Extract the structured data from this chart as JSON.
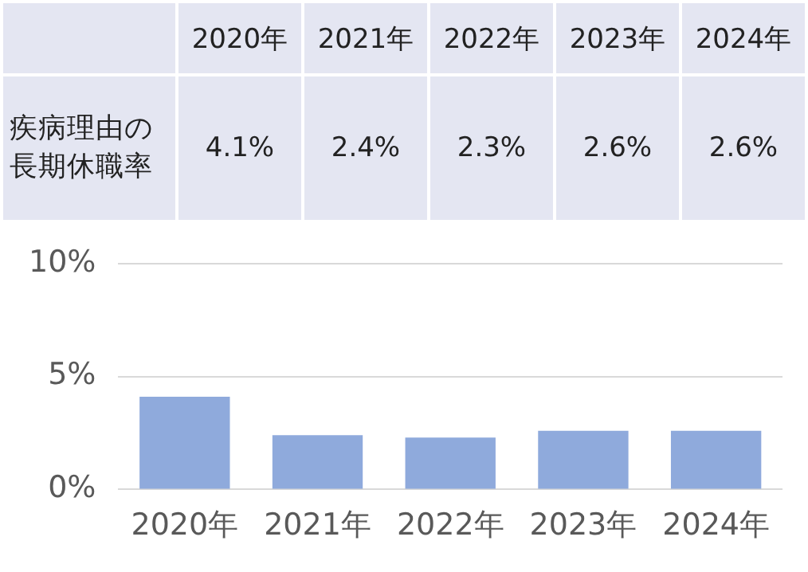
{
  "chart_data": {
    "type": "bar",
    "categories": [
      "2020年",
      "2021年",
      "2022年",
      "2023年",
      "2024年"
    ],
    "series": [
      {
        "name": "疾病理由の長期休職率",
        "color": "#8faadc",
        "values": [
          4.1,
          2.4,
          2.3,
          2.6,
          2.6
        ],
        "value_labels": [
          "4.1%",
          "2.4%",
          "2.3%",
          "2.6%",
          "2.6%"
        ]
      }
    ],
    "ylim": [
      0,
      10
    ],
    "yticks": [
      {
        "value": 0,
        "label": "0%"
      },
      {
        "value": 5,
        "label": "5%"
      },
      {
        "value": 10,
        "label": "10%"
      }
    ],
    "grid": "y",
    "legend": false
  }
}
